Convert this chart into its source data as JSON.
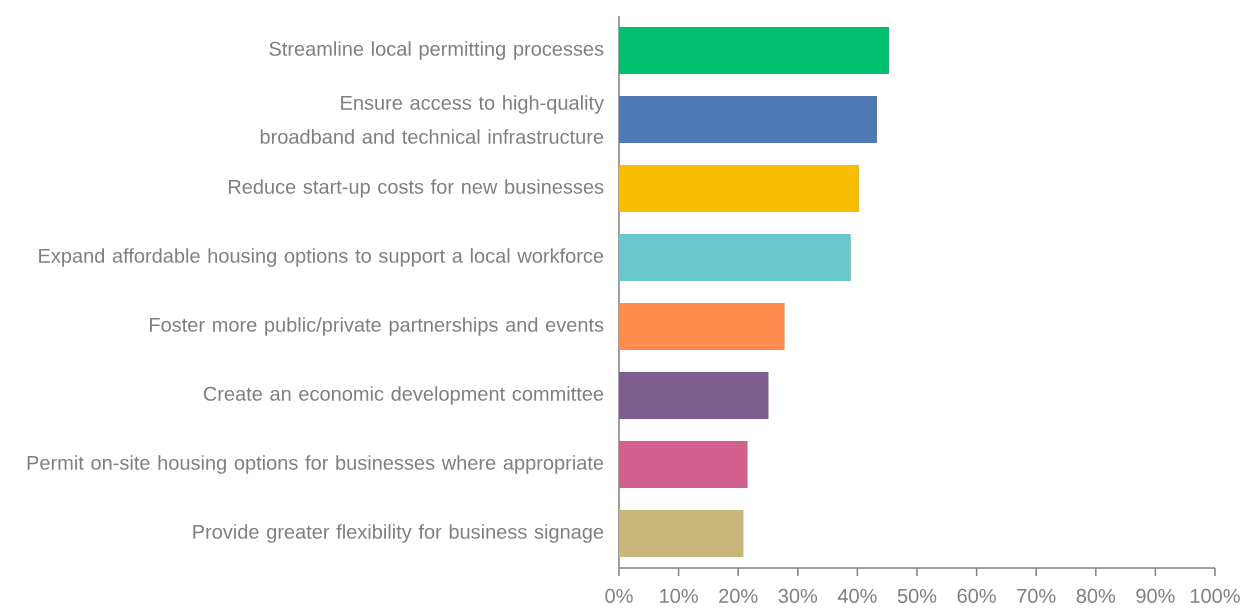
{
  "chart_data": {
    "type": "bar",
    "orientation": "horizontal",
    "categories": [
      "Streamline local permitting processes",
      "Ensure access to high-quality broadband and technical infrastructure",
      "Reduce start-up costs for new businesses",
      "Expand affordable housing options to support a local workforce",
      "Foster more public/private partnerships and events",
      "Create an economic development committee",
      "Permit on-site housing options for businesses where appropriate",
      "Provide greater flexibility for business signage"
    ],
    "values": [
      45.3,
      43.3,
      40.3,
      38.9,
      27.8,
      25.1,
      21.6,
      20.9
    ],
    "colors": [
      "#00bf6f",
      "#4e79b4",
      "#f8bd00",
      "#6ac8cc",
      "#ff8b4f",
      "#7d5d8e",
      "#d35f8d",
      "#c8b67a"
    ],
    "xlim": [
      0,
      100
    ],
    "xticks": [
      {
        "value": 0,
        "label": "0%"
      },
      {
        "value": 10,
        "label": "10%"
      },
      {
        "value": 20,
        "label": "20%"
      },
      {
        "value": 30,
        "label": "30%"
      },
      {
        "value": 40,
        "label": "40%"
      },
      {
        "value": 50,
        "label": "50%"
      },
      {
        "value": 60,
        "label": "60%"
      },
      {
        "value": 70,
        "label": "70%"
      },
      {
        "value": 80,
        "label": "80%"
      },
      {
        "value": 90,
        "label": "90%"
      },
      {
        "value": 100,
        "label": "100%"
      }
    ],
    "grid": false
  }
}
